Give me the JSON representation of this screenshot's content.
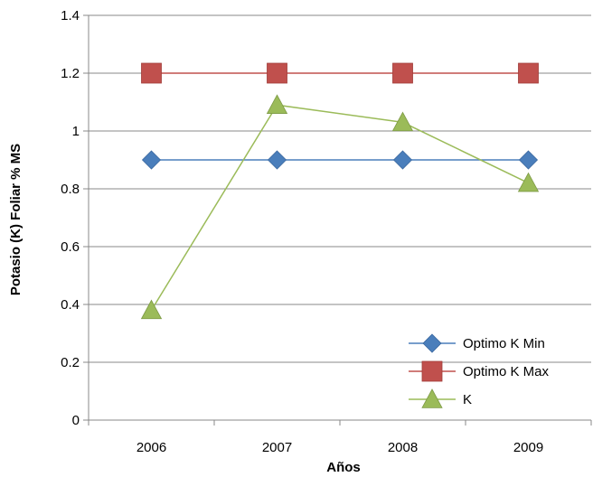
{
  "chart_data": {
    "type": "line",
    "title": "",
    "xlabel": "Años",
    "ylabel": "Potasio (K) Foliar % MS",
    "categories": [
      "2006",
      "2007",
      "2008",
      "2009"
    ],
    "ylim": [
      0,
      1.4
    ],
    "yticks": [
      "0",
      "0.2",
      "0.4",
      "0.6",
      "0.8",
      "1",
      "1.2",
      "1.4"
    ],
    "grid": "horizontal",
    "legend": "bottom-right",
    "series": [
      {
        "name": "Optimo K Min",
        "values": [
          0.9,
          0.9,
          0.9,
          0.9
        ],
        "color": "#4a7ebb",
        "marker": "diamond"
      },
      {
        "name": "Optimo K Max",
        "values": [
          1.2,
          1.2,
          1.2,
          1.2
        ],
        "color": "#c0504d",
        "marker": "square"
      },
      {
        "name": "K",
        "values": [
          0.38,
          1.09,
          1.03,
          0.82
        ],
        "color": "#9bbb59",
        "marker": "triangle"
      }
    ]
  }
}
